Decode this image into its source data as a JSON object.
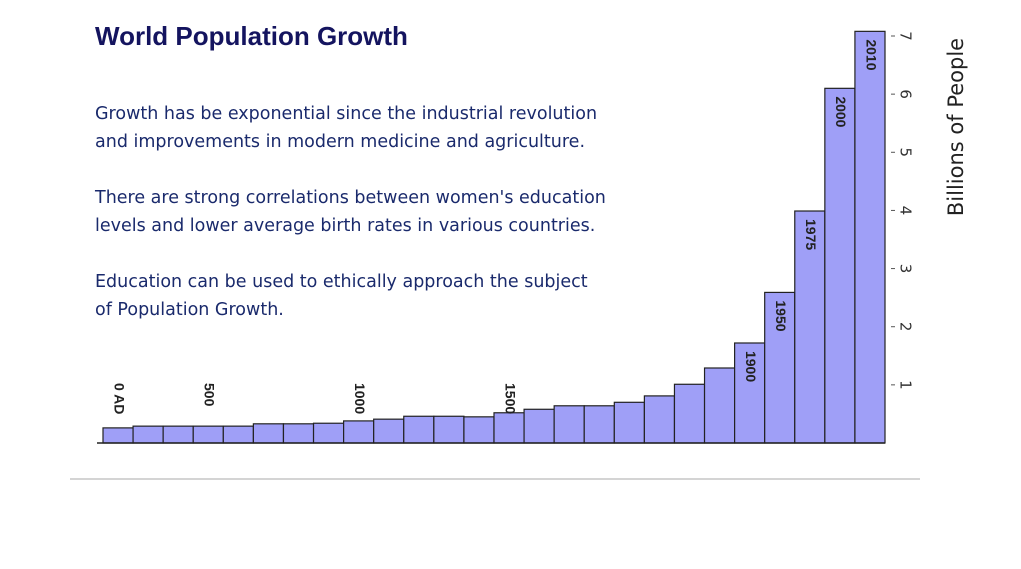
{
  "title": "World Population Growth",
  "paragraphs": [
    [
      "Growth has be exponential since the industrial revolution",
      "and improvements in modern medicine and agriculture."
    ],
    [
      "There are strong correlations between women's education",
      "levels and lower average birth rates in various countries."
    ],
    [
      "Education can be used to ethically approach the subject",
      "of Population Growth."
    ]
  ],
  "chart_data": {
    "type": "bar",
    "y_label": "Billions of People",
    "categories": [
      "0 AD",
      null,
      null,
      "500",
      null,
      null,
      null,
      null,
      "1000",
      null,
      null,
      null,
      null,
      "1500",
      null,
      null,
      null,
      null,
      null,
      null,
      null,
      "1900",
      "1950",
      "1975",
      "2000",
      "2010"
    ],
    "values": [
      0.26,
      0.29,
      0.29,
      0.29,
      0.29,
      0.33,
      0.33,
      0.34,
      0.38,
      0.41,
      0.46,
      0.46,
      0.45,
      0.52,
      0.58,
      0.64,
      0.64,
      0.7,
      0.81,
      1.01,
      1.29,
      1.72,
      2.59,
      3.99,
      6.1,
      7.08
    ],
    "color": "#9f9ff7",
    "ylim": [
      0,
      7
    ],
    "yticks": [
      1,
      2,
      3,
      4,
      5,
      6,
      7
    ]
  }
}
